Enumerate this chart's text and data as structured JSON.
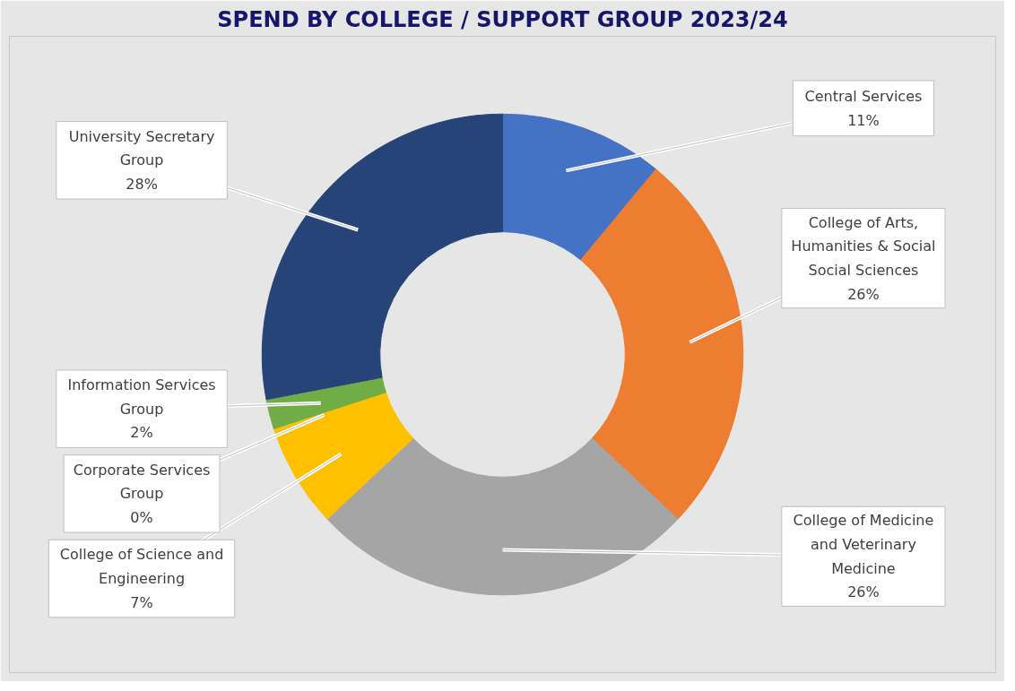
{
  "chart_data": {
    "type": "donut",
    "title": "SPEND BY COLLEGE / SUPPORT GROUP 2023/24",
    "categories": [
      "Central Services",
      "College of Arts, Humanities & Social Social Sciences",
      "College of Medicine and Veterinary Medicine",
      "College of Science and Engineering",
      "Corporate Services Group",
      "Information Services Group",
      "University Secretary Group"
    ],
    "values": [
      11,
      26,
      26,
      7,
      0,
      2,
      28
    ],
    "colors": [
      "#4472c4",
      "#ed7d31",
      "#a5a5a5",
      "#ffc000",
      "#5b9bd5",
      "#70ad47",
      "#264478"
    ],
    "value_labels": [
      "11%",
      "26%",
      "26%",
      "7%",
      "0%",
      "2%",
      "28%"
    ]
  }
}
